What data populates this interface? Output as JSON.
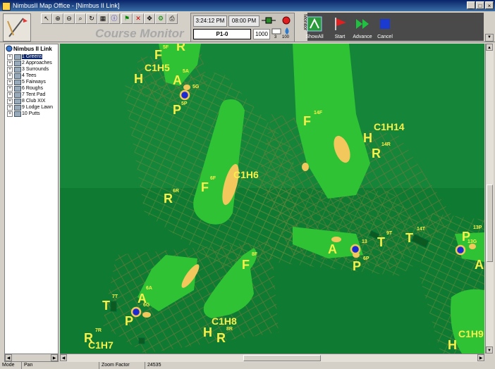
{
  "window": {
    "title": "NimbusII Map Office - [Nimbus II Link]",
    "controls": [
      "_",
      "□",
      "×"
    ]
  },
  "toolbar": {
    "app_title": "Course Monitor",
    "time_current": "3:24:12 PM",
    "time_second": "08:00 PM",
    "program_label": "P1-0",
    "program_value": "1000",
    "gauge_1": "3",
    "gauge_2": "100",
    "monitor_label": "Monitor",
    "buttons": {
      "showall": "ShowAll",
      "start": "Start",
      "advance": "Advance",
      "cancel": "Cancel"
    }
  },
  "tree": {
    "root": "Nimbus II Link",
    "items": [
      {
        "label": "1 Greens",
        "selected": true
      },
      {
        "label": "2 Approaches"
      },
      {
        "label": "3 Surrounds"
      },
      {
        "label": "4 Tees"
      },
      {
        "label": "5 Fairways"
      },
      {
        "label": "6 Roughs"
      },
      {
        "label": "7 Tent Pad"
      },
      {
        "label": "8 Club XIX"
      },
      {
        "label": "9 Lodge Lawn"
      },
      {
        "label": "10 Putts"
      }
    ]
  },
  "map": {
    "labels": {
      "c1h5": "C1H5",
      "c1h6": "C1H6",
      "c1h7": "C1H7",
      "c1h8": "C1H8",
      "c1h9": "C1H9",
      "c1h14": "C1H14",
      "f": "F",
      "h": "H",
      "r": "R",
      "a": "A",
      "p": "P",
      "t": "T",
      "s5f": "5F",
      "s5a": "5A",
      "s5g": "5G",
      "s5p": "5P",
      "s6f": "6F",
      "s6r": "6R",
      "s6a": "6A",
      "s6g": "6G",
      "s7t": "7T",
      "s7r": "7R",
      "s8f": "8F",
      "s8r": "8R",
      "s9t": "9T",
      "s6p": "6P",
      "s13": "13",
      "s13p": "13P",
      "s13g": "13G",
      "s14f": "14F",
      "s14r": "14R",
      "s14t": "14T"
    }
  },
  "statusbar": {
    "mode_label": "Mode",
    "mode_value": "Pan",
    "zoom_label": "Zoom Factor",
    "zoom_value": "24535"
  },
  "colors": {
    "map_bg": "#0f7a32",
    "fairway": "#2ec234",
    "sand": "#f2c75c",
    "label": "#f7ef4a",
    "titlebar": "#0a246a"
  }
}
